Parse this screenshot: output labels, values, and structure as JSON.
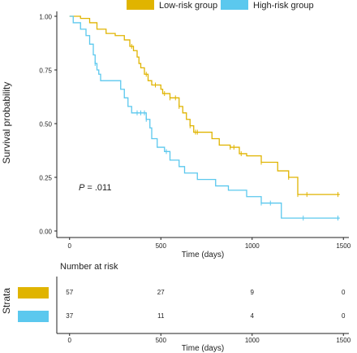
{
  "chart_data": [
    {
      "type": "line",
      "subtype": "kaplan-meier",
      "xlabel": "Time (days)",
      "ylabel": "Survival probability",
      "xlim": [
        -70,
        1530
      ],
      "ylim": [
        0,
        1
      ],
      "x_ticks": [
        "0",
        "500",
        "1000",
        "1500"
      ],
      "y_ticks": [
        "0.00",
        "0.25",
        "0.50",
        "0.75",
        "1.00"
      ],
      "x_tick_values": [
        0,
        500,
        1000,
        1500
      ],
      "y_tick_values": [
        0,
        0.25,
        0.5,
        0.75,
        1.0
      ],
      "annotation_p_label": "P",
      "annotation_p_value": " = .011",
      "annotation_position": "lower-left",
      "legend_position": "top",
      "grid": false,
      "series": [
        {
          "name": "Low-risk group",
          "color": "#E0B400",
          "steps": [
            [
              0,
              1.0
            ],
            [
              60,
              0.99
            ],
            [
              110,
              0.97
            ],
            [
              150,
              0.94
            ],
            [
              200,
              0.92
            ],
            [
              250,
              0.91
            ],
            [
              300,
              0.89
            ],
            [
              330,
              0.86
            ],
            [
              350,
              0.84
            ],
            [
              370,
              0.81
            ],
            [
              380,
              0.78
            ],
            [
              390,
              0.76
            ],
            [
              410,
              0.73
            ],
            [
              430,
              0.7
            ],
            [
              450,
              0.68
            ],
            [
              500,
              0.66
            ],
            [
              510,
              0.64
            ],
            [
              550,
              0.62
            ],
            [
              600,
              0.58
            ],
            [
              620,
              0.55
            ],
            [
              640,
              0.52
            ],
            [
              660,
              0.49
            ],
            [
              680,
              0.46
            ],
            [
              780,
              0.43
            ],
            [
              820,
              0.4
            ],
            [
              880,
              0.39
            ],
            [
              930,
              0.36
            ],
            [
              970,
              0.35
            ],
            [
              1050,
              0.32
            ],
            [
              1140,
              0.28
            ],
            [
              1200,
              0.25
            ],
            [
              1250,
              0.17
            ],
            [
              1480,
              0.17
            ]
          ],
          "censor_times": [
            340,
            420,
            470,
            520,
            550,
            580,
            600,
            660,
            690,
            700,
            880,
            900,
            940,
            1050,
            1200,
            1250,
            1300,
            1470
          ]
        },
        {
          "name": "High-risk group",
          "color": "#5BC8EE",
          "steps": [
            [
              0,
              1.0
            ],
            [
              20,
              0.97
            ],
            [
              60,
              0.94
            ],
            [
              90,
              0.91
            ],
            [
              110,
              0.87
            ],
            [
              130,
              0.82
            ],
            [
              140,
              0.78
            ],
            [
              150,
              0.75
            ],
            [
              160,
              0.73
            ],
            [
              170,
              0.7
            ],
            [
              280,
              0.66
            ],
            [
              300,
              0.62
            ],
            [
              320,
              0.58
            ],
            [
              340,
              0.55
            ],
            [
              420,
              0.52
            ],
            [
              440,
              0.48
            ],
            [
              450,
              0.43
            ],
            [
              480,
              0.39
            ],
            [
              520,
              0.37
            ],
            [
              550,
              0.33
            ],
            [
              600,
              0.3
            ],
            [
              630,
              0.27
            ],
            [
              700,
              0.24
            ],
            [
              800,
              0.21
            ],
            [
              870,
              0.19
            ],
            [
              970,
              0.16
            ],
            [
              1050,
              0.13
            ],
            [
              1160,
              0.06
            ],
            [
              1480,
              0.06
            ]
          ],
          "censor_times": [
            140,
            370,
            390,
            410,
            420,
            530,
            1050,
            1100,
            1280,
            1470
          ]
        }
      ]
    },
    {
      "type": "table",
      "title": "Number at risk",
      "ylabel": "Strata",
      "xlabel": "Time (days)",
      "columns": [
        "0",
        "500",
        "1000",
        "1500"
      ],
      "rows": [
        {
          "color": "#E0B400",
          "values": [
            "57",
            "27",
            "9",
            "0"
          ]
        },
        {
          "color": "#5BC8EE",
          "values": [
            "37",
            "11",
            "4",
            "0"
          ]
        }
      ]
    }
  ]
}
